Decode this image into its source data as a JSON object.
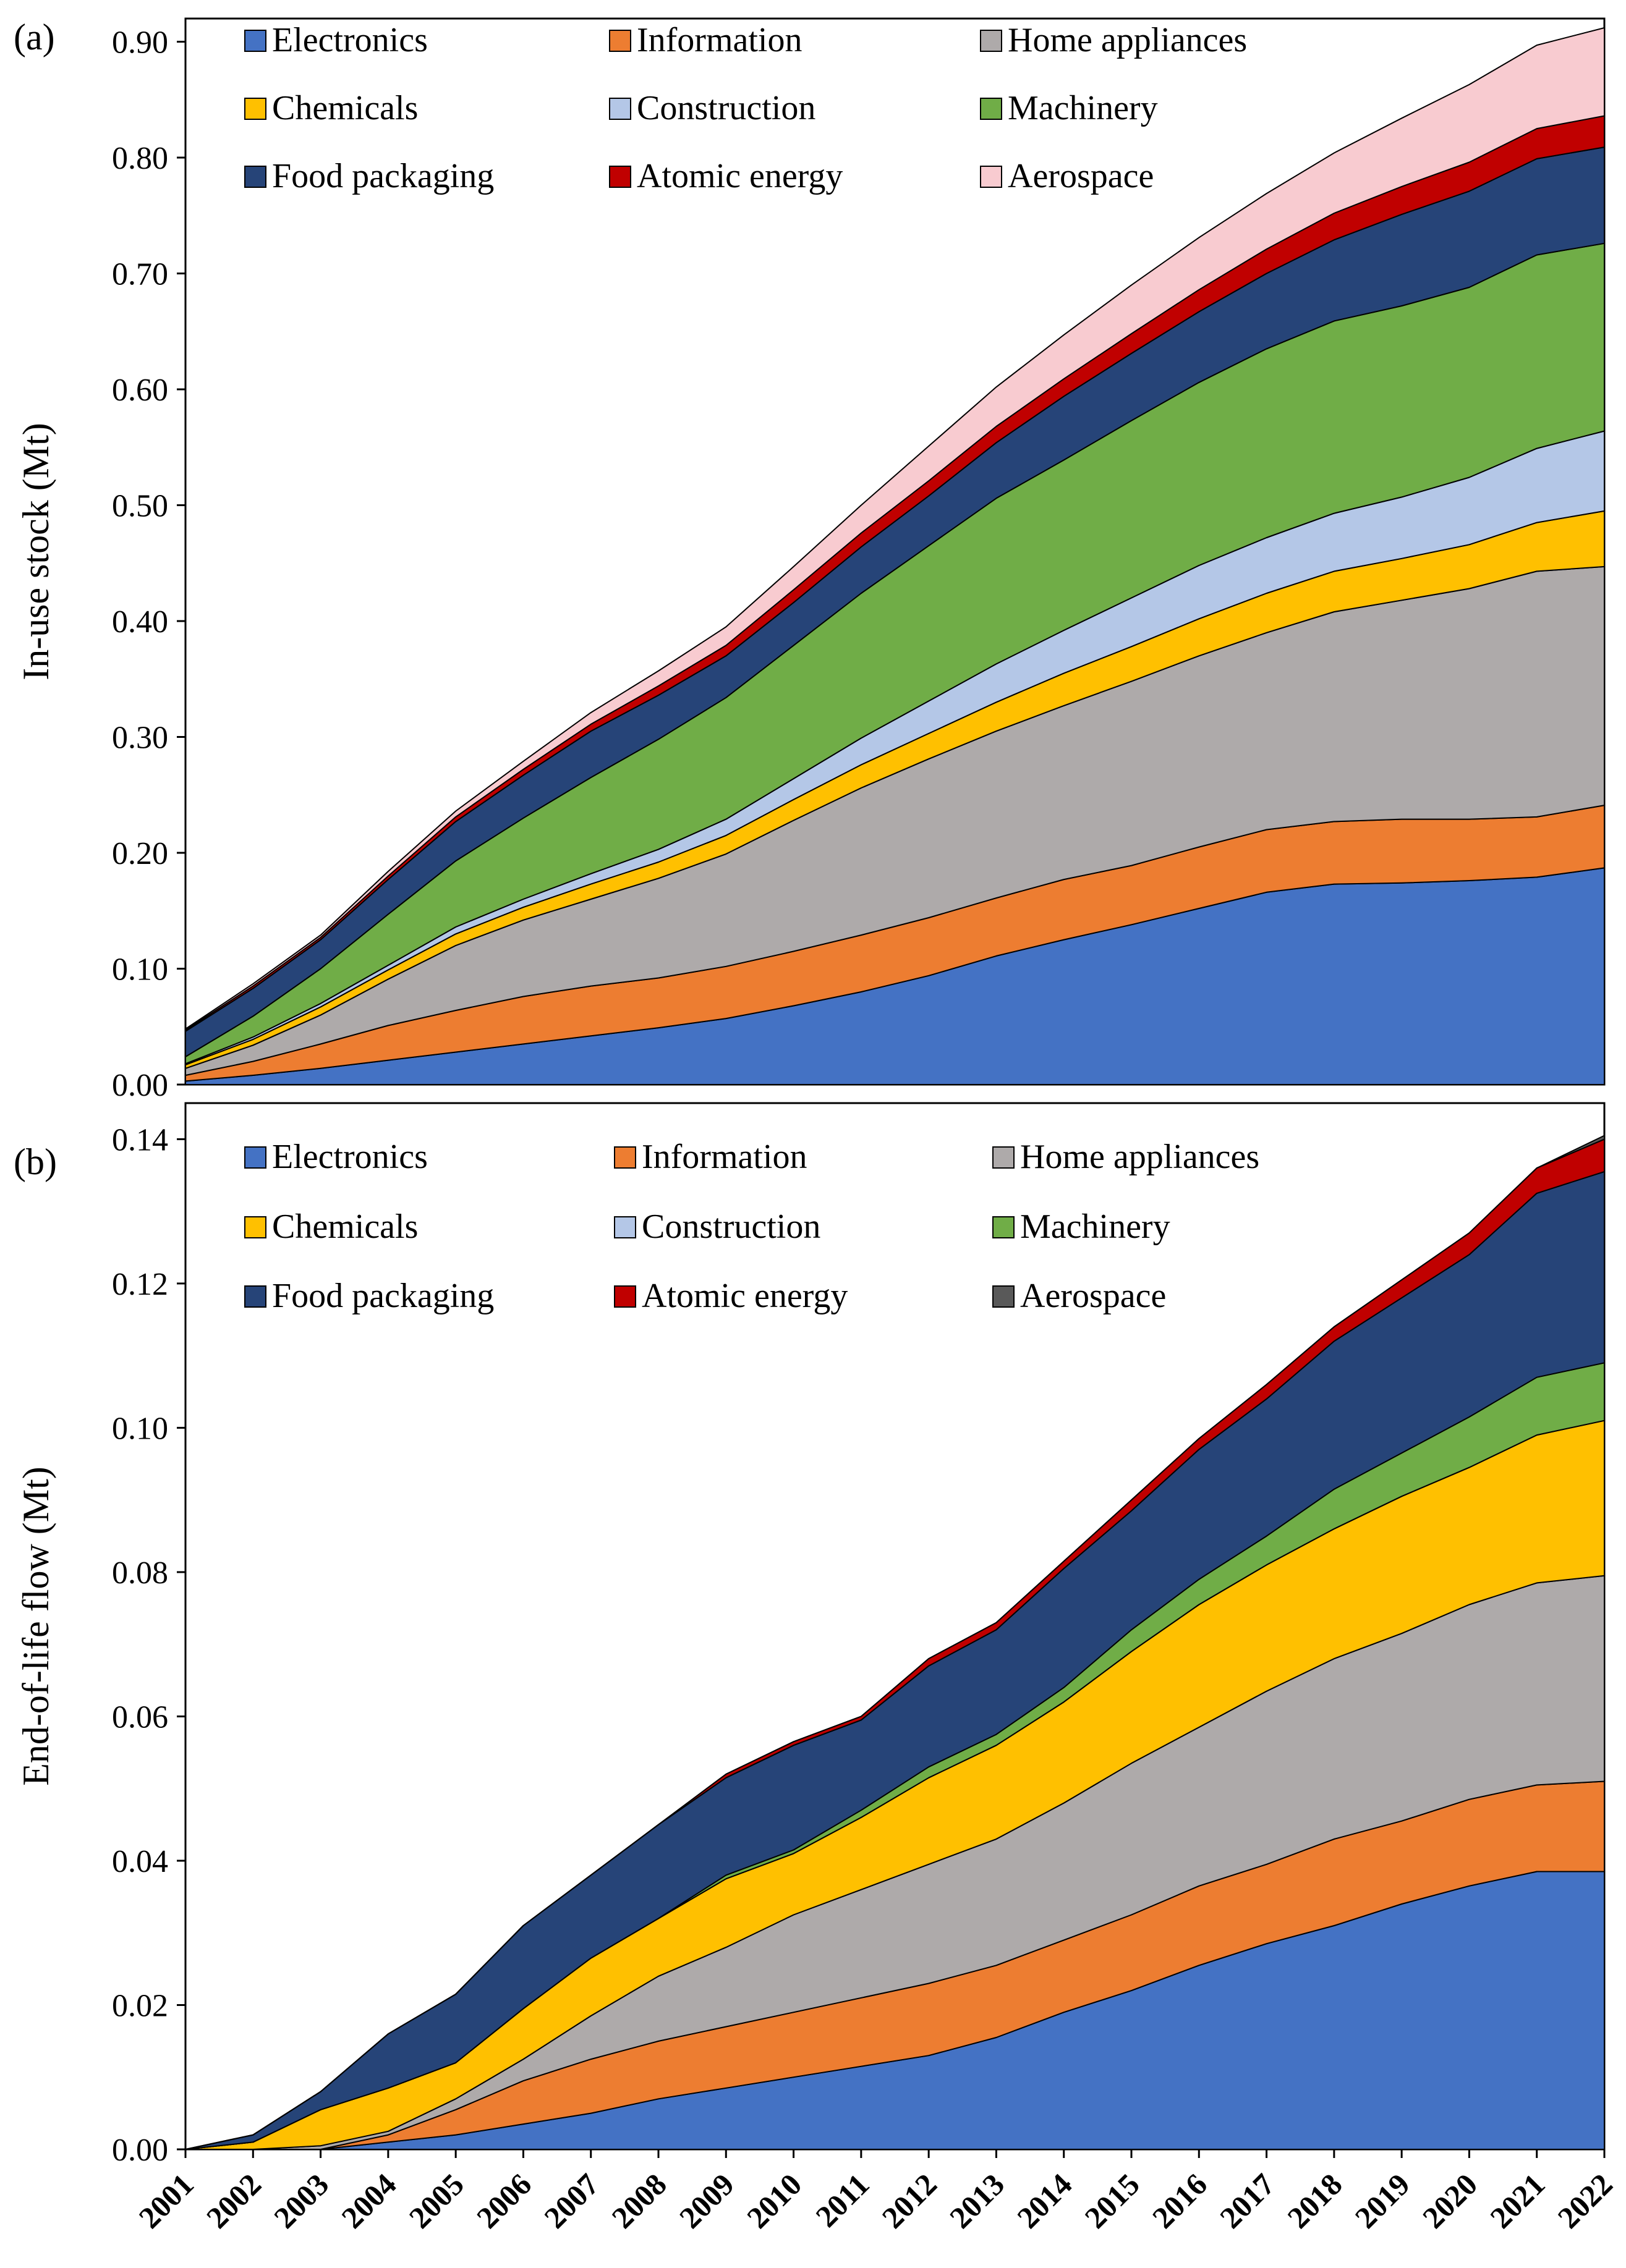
{
  "chart_data": [
    {
      "type": "area",
      "stacked": true,
      "panel_label": "(a)",
      "title": "",
      "xlabel": "",
      "ylabel": "In-use stock (Mt)",
      "ylim": [
        0,
        0.92
      ],
      "yticks": [
        "0.00",
        "0.10",
        "0.20",
        "0.30",
        "0.40",
        "0.50",
        "0.60",
        "0.70",
        "0.80",
        "0.90"
      ],
      "x": [
        2001,
        2002,
        2003,
        2004,
        2005,
        2006,
        2007,
        2008,
        2009,
        2010,
        2011,
        2012,
        2013,
        2014,
        2015,
        2016,
        2017,
        2018,
        2019,
        2020,
        2021,
        2022
      ],
      "legend": "top-left, 3 columns",
      "series": [
        {
          "name": "Electronics",
          "color": "#4472C4",
          "values": [
            0.003,
            0.008,
            0.014,
            0.021,
            0.028,
            0.035,
            0.042,
            0.049,
            0.057,
            0.068,
            0.08,
            0.094,
            0.111,
            0.125,
            0.138,
            0.152,
            0.166,
            0.173,
            0.174,
            0.176,
            0.179,
            0.187
          ]
        },
        {
          "name": "Information",
          "color": "#ED7D31",
          "values": [
            0.005,
            0.012,
            0.021,
            0.03,
            0.036,
            0.041,
            0.043,
            0.043,
            0.045,
            0.047,
            0.049,
            0.05,
            0.05,
            0.052,
            0.051,
            0.053,
            0.054,
            0.054,
            0.055,
            0.053,
            0.052,
            0.054
          ]
        },
        {
          "name": "Home appliances",
          "color": "#AEAAAA",
          "values": [
            0.006,
            0.014,
            0.025,
            0.04,
            0.056,
            0.066,
            0.075,
            0.086,
            0.097,
            0.113,
            0.127,
            0.137,
            0.144,
            0.15,
            0.159,
            0.165,
            0.17,
            0.181,
            0.189,
            0.199,
            0.212,
            0.206
          ]
        },
        {
          "name": "Chemicals",
          "color": "#FFC000",
          "values": [
            0.003,
            0.005,
            0.007,
            0.008,
            0.01,
            0.011,
            0.013,
            0.014,
            0.016,
            0.018,
            0.02,
            0.022,
            0.025,
            0.028,
            0.03,
            0.032,
            0.034,
            0.035,
            0.036,
            0.038,
            0.042,
            0.048
          ]
        },
        {
          "name": "Construction",
          "color": "#B4C7E7",
          "values": [
            0.001,
            0.002,
            0.003,
            0.004,
            0.006,
            0.007,
            0.009,
            0.011,
            0.014,
            0.018,
            0.023,
            0.028,
            0.033,
            0.037,
            0.042,
            0.046,
            0.048,
            0.05,
            0.053,
            0.058,
            0.064,
            0.069
          ]
        },
        {
          "name": "Machinery",
          "color": "#70AD47",
          "values": [
            0.006,
            0.018,
            0.03,
            0.044,
            0.057,
            0.07,
            0.083,
            0.095,
            0.105,
            0.115,
            0.125,
            0.134,
            0.143,
            0.147,
            0.153,
            0.158,
            0.163,
            0.166,
            0.165,
            0.164,
            0.167,
            0.162
          ]
        },
        {
          "name": "Food packaging",
          "color": "#264478",
          "values": [
            0.022,
            0.024,
            0.025,
            0.03,
            0.034,
            0.037,
            0.04,
            0.038,
            0.036,
            0.037,
            0.04,
            0.043,
            0.048,
            0.055,
            0.058,
            0.061,
            0.065,
            0.07,
            0.079,
            0.083,
            0.083,
            0.083
          ]
        },
        {
          "name": "Atomic energy",
          "color": "#C00000",
          "values": [
            0.001,
            0.002,
            0.002,
            0.003,
            0.004,
            0.005,
            0.006,
            0.008,
            0.009,
            0.011,
            0.012,
            0.013,
            0.014,
            0.015,
            0.017,
            0.019,
            0.021,
            0.023,
            0.024,
            0.025,
            0.026,
            0.027
          ]
        },
        {
          "name": "Aerospace",
          "color": "#F8CBD0",
          "values": [
            0.001,
            0.002,
            0.002,
            0.004,
            0.005,
            0.007,
            0.01,
            0.013,
            0.016,
            0.02,
            0.024,
            0.03,
            0.034,
            0.038,
            0.042,
            0.045,
            0.048,
            0.052,
            0.059,
            0.067,
            0.072,
            0.076
          ]
        }
      ]
    },
    {
      "type": "area",
      "stacked": true,
      "panel_label": "(b)",
      "title": "",
      "xlabel": "",
      "ylabel": "End-of-life flow (Mt)",
      "ylim": [
        0,
        0.145
      ],
      "yticks": [
        "0.00",
        "0.02",
        "0.04",
        "0.06",
        "0.08",
        "0.10",
        "0.12",
        "0.14"
      ],
      "x": [
        2001,
        2002,
        2003,
        2004,
        2005,
        2006,
        2007,
        2008,
        2009,
        2010,
        2011,
        2012,
        2013,
        2014,
        2015,
        2016,
        2017,
        2018,
        2019,
        2020,
        2021,
        2022
      ],
      "xtick_labels": [
        "2001",
        "2002",
        "2003",
        "2004",
        "2005",
        "2006",
        "2007",
        "2008",
        "2009",
        "2010",
        "2011",
        "2012",
        "2013",
        "2014",
        "2015",
        "2016",
        "2017",
        "2018",
        "2019",
        "2020",
        "2021",
        "2022"
      ],
      "legend": "top-left, 3 columns",
      "series": [
        {
          "name": "Electronics",
          "color": "#4472C4",
          "values": [
            0.0,
            0.0,
            0.0,
            0.001,
            0.002,
            0.0035,
            0.005,
            0.007,
            0.0085,
            0.01,
            0.0115,
            0.013,
            0.0155,
            0.019,
            0.022,
            0.0255,
            0.0285,
            0.031,
            0.034,
            0.0365,
            0.0385,
            0.0385
          ]
        },
        {
          "name": "Information",
          "color": "#ED7D31",
          "values": [
            0.0,
            0.0,
            0.0,
            0.001,
            0.0035,
            0.006,
            0.0075,
            0.008,
            0.0085,
            0.009,
            0.0095,
            0.01,
            0.01,
            0.01,
            0.0105,
            0.011,
            0.011,
            0.012,
            0.0115,
            0.012,
            0.012,
            0.0125
          ]
        },
        {
          "name": "Home appliances",
          "color": "#AEAAAA",
          "values": [
            0.0,
            0.0,
            0.0005,
            0.0005,
            0.0015,
            0.003,
            0.006,
            0.009,
            0.011,
            0.0135,
            0.015,
            0.0165,
            0.0175,
            0.019,
            0.021,
            0.022,
            0.024,
            0.025,
            0.026,
            0.027,
            0.028,
            0.0285
          ]
        },
        {
          "name": "Chemicals",
          "color": "#FFC000",
          "values": [
            0.0,
            0.001,
            0.005,
            0.006,
            0.005,
            0.007,
            0.008,
            0.008,
            0.0095,
            0.0085,
            0.01,
            0.012,
            0.013,
            0.014,
            0.0155,
            0.017,
            0.0175,
            0.018,
            0.019,
            0.019,
            0.0205,
            0.0215
          ]
        },
        {
          "name": "Construction",
          "color": "#B4C7E7",
          "values": [
            0.0,
            0.0,
            0.0,
            0.0,
            0.0,
            0.0,
            0.0,
            0.0,
            0.0,
            0.0,
            0.0,
            0.0,
            0.0,
            0.0,
            0.0,
            0.0,
            0.0,
            0.0,
            0.0,
            0.0,
            0.0,
            0.0
          ]
        },
        {
          "name": "Machinery",
          "color": "#70AD47",
          "values": [
            0.0,
            0.0,
            0.0,
            0.0,
            0.0,
            0.0,
            0.0,
            0.0,
            0.0005,
            0.0005,
            0.001,
            0.0015,
            0.0015,
            0.002,
            0.003,
            0.0035,
            0.004,
            0.0055,
            0.006,
            0.007,
            0.008,
            0.008
          ]
        },
        {
          "name": "Food packaging",
          "color": "#264478",
          "values": [
            0.0,
            0.001,
            0.0025,
            0.0075,
            0.0095,
            0.0115,
            0.0115,
            0.013,
            0.0135,
            0.0145,
            0.0125,
            0.014,
            0.0145,
            0.0165,
            0.0165,
            0.018,
            0.019,
            0.0205,
            0.0215,
            0.0225,
            0.0255,
            0.0265
          ]
        },
        {
          "name": "Atomic energy",
          "color": "#C00000",
          "values": [
            0.0,
            0.0,
            0.0,
            0.0,
            0.0,
            0.0,
            0.0,
            0.0,
            0.0005,
            0.0005,
            0.0005,
            0.001,
            0.001,
            0.001,
            0.0015,
            0.0015,
            0.002,
            0.002,
            0.0025,
            0.003,
            0.0035,
            0.0045
          ]
        },
        {
          "name": "Aerospace",
          "color": "#595959",
          "values": [
            0.0,
            0.0,
            0.0,
            0.0,
            0.0,
            0.0,
            0.0,
            0.0,
            0.0,
            0.0,
            0.0,
            0.0,
            0.0,
            0.0,
            0.0,
            0.0,
            0.0,
            0.0,
            0.0,
            0.0,
            0.0,
            0.0005
          ]
        }
      ]
    }
  ]
}
